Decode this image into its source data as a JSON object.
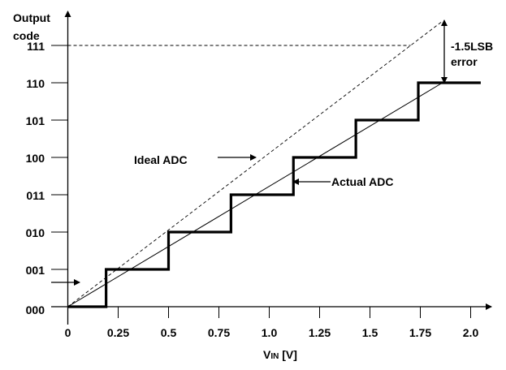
{
  "chart_data": {
    "type": "line",
    "ylabel_lines": [
      "Output",
      "code"
    ],
    "xlabel_main": "V",
    "xlabel_sub": "IN",
    "xlabel_unit": " [V]",
    "x_ticks": [
      "0",
      "0.25",
      "0.5",
      "0.75",
      "1.0",
      "1.25",
      "1.5",
      "1.75",
      "2.0"
    ],
    "x_tick_values": [
      0,
      0.25,
      0.5,
      0.75,
      1.0,
      1.25,
      1.5,
      1.75,
      2.0
    ],
    "y_ticks": [
      "000",
      "001",
      "010",
      "011",
      "100",
      "101",
      "110",
      "111"
    ],
    "xlim": [
      0,
      2.1
    ],
    "ylim": [
      0,
      7.6
    ],
    "actual_adc": {
      "label": "Actual ADC",
      "transitions_v": [
        0.19,
        0.5,
        0.81,
        1.12,
        1.43,
        1.74
      ],
      "end_v": 2.05,
      "final_code": 6
    },
    "ideal_adc": {
      "label": "Ideal ADC",
      "points": [
        [
          0,
          0
        ],
        [
          1.86,
          7.65
        ]
      ]
    },
    "actual_transfer_line": {
      "points": [
        [
          0,
          0
        ],
        [
          1.86,
          6
        ]
      ]
    },
    "reference_level_code": 7,
    "error_annotation": [
      "-1.5LSB",
      "error"
    ],
    "colors": {
      "ink": "#000000"
    }
  }
}
